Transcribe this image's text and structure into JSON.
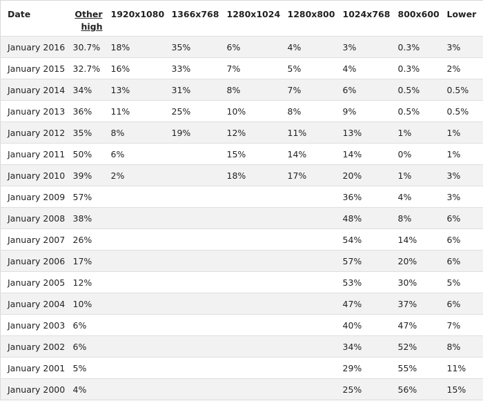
{
  "table": {
    "headers": [
      "Date",
      "Other high",
      "1920x1080",
      "1366x768",
      "1280x1024",
      "1280x800",
      "1024x768",
      "800x600",
      "Lower"
    ],
    "rows": [
      [
        "January 2016",
        "30.7%",
        "18%",
        "35%",
        "6%",
        "4%",
        "3%",
        "0.3%",
        "3%"
      ],
      [
        "January 2015",
        "32.7%",
        "16%",
        "33%",
        "7%",
        "5%",
        "4%",
        "0.3%",
        "2%"
      ],
      [
        "January 2014",
        "34%",
        "13%",
        "31%",
        "8%",
        "7%",
        "6%",
        "0.5%",
        "0.5%"
      ],
      [
        "January 2013",
        "36%",
        "11%",
        "25%",
        "10%",
        "8%",
        "9%",
        "0.5%",
        "0.5%"
      ],
      [
        "January 2012",
        "35%",
        "8%",
        "19%",
        "12%",
        "11%",
        "13%",
        "1%",
        "1%"
      ],
      [
        "January 2011",
        "50%",
        "6%",
        null,
        "15%",
        "14%",
        "14%",
        "0%",
        "1%"
      ],
      [
        "January 2010",
        "39%",
        "2%",
        null,
        "18%",
        "17%",
        "20%",
        "1%",
        "3%"
      ],
      [
        "January 2009",
        "57%",
        null,
        null,
        null,
        null,
        "36%",
        "4%",
        "3%"
      ],
      [
        "January 2008",
        "38%",
        null,
        null,
        null,
        null,
        "48%",
        "8%",
        "6%"
      ],
      [
        "January 2007",
        "26%",
        null,
        null,
        null,
        null,
        "54%",
        "14%",
        "6%"
      ],
      [
        "January 2006",
        "17%",
        null,
        null,
        null,
        null,
        "57%",
        "20%",
        "6%"
      ],
      [
        "January 2005",
        "12%",
        null,
        null,
        null,
        null,
        "53%",
        "30%",
        "5%"
      ],
      [
        "January 2004",
        "10%",
        null,
        null,
        null,
        null,
        "47%",
        "37%",
        "6%"
      ],
      [
        "January 2003",
        "6%",
        null,
        null,
        null,
        null,
        "40%",
        "47%",
        "7%"
      ],
      [
        "January 2002",
        "6%",
        null,
        null,
        null,
        null,
        "34%",
        "52%",
        "8%"
      ],
      [
        "January 2001",
        "5%",
        null,
        null,
        null,
        null,
        "29%",
        "55%",
        "11%"
      ],
      [
        "January 2000",
        "4%",
        null,
        null,
        null,
        null,
        "25%",
        "56%",
        "15%"
      ]
    ]
  }
}
